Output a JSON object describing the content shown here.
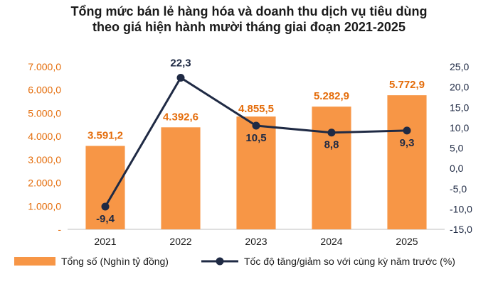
{
  "chart_data": {
    "type": "bar+line",
    "title_line1": "Tổng mức bán lẻ hàng hóa và doanh thu dịch vụ tiêu dùng",
    "title_line2": "theo giá hiện hành mười tháng giai đoạn 2021-2025",
    "categories": [
      "2021",
      "2022",
      "2023",
      "2024",
      "2025"
    ],
    "series": [
      {
        "name": "Tổng số (Nghìn tỷ đồng)",
        "type": "bar",
        "axis": "left",
        "color": "#f79646",
        "values": [
          3591.2,
          4392.6,
          4855.5,
          5282.9,
          5772.9
        ],
        "labels": [
          "3.591,2",
          "4.392,6",
          "4.855,5",
          "5.282,9",
          "5.772,9"
        ]
      },
      {
        "name": "Tốc độ tăng/giảm so với cùng kỳ năm trước (%)",
        "type": "line",
        "axis": "right",
        "color": "#1f2a44",
        "values": [
          -9.4,
          22.3,
          10.5,
          8.8,
          9.3
        ],
        "labels": [
          "-9,4",
          "22,3",
          "10,5",
          "8,8",
          "9,3"
        ]
      }
    ],
    "y_left": {
      "range": [
        0,
        7000
      ],
      "ticks": [
        0,
        1000,
        2000,
        3000,
        4000,
        5000,
        6000,
        7000
      ],
      "tick_labels": [
        "-",
        "1.000,0",
        "2.000,0",
        "3.000,0",
        "4.000,0",
        "5.000,0",
        "6.000,0",
        "7.000,0"
      ],
      "color": "#e46c0a"
    },
    "y_right": {
      "range": [
        -15,
        25
      ],
      "ticks": [
        -15,
        -10,
        -5,
        0,
        5,
        10,
        15,
        20,
        25
      ],
      "tick_labels": [
        "-15,0",
        "-10,0",
        "-5,0",
        "0,0",
        "5,0",
        "10,0",
        "15,0",
        "20,0",
        "25,0"
      ],
      "color": "#1f2a44"
    },
    "grid": false,
    "legend_position": "bottom"
  }
}
